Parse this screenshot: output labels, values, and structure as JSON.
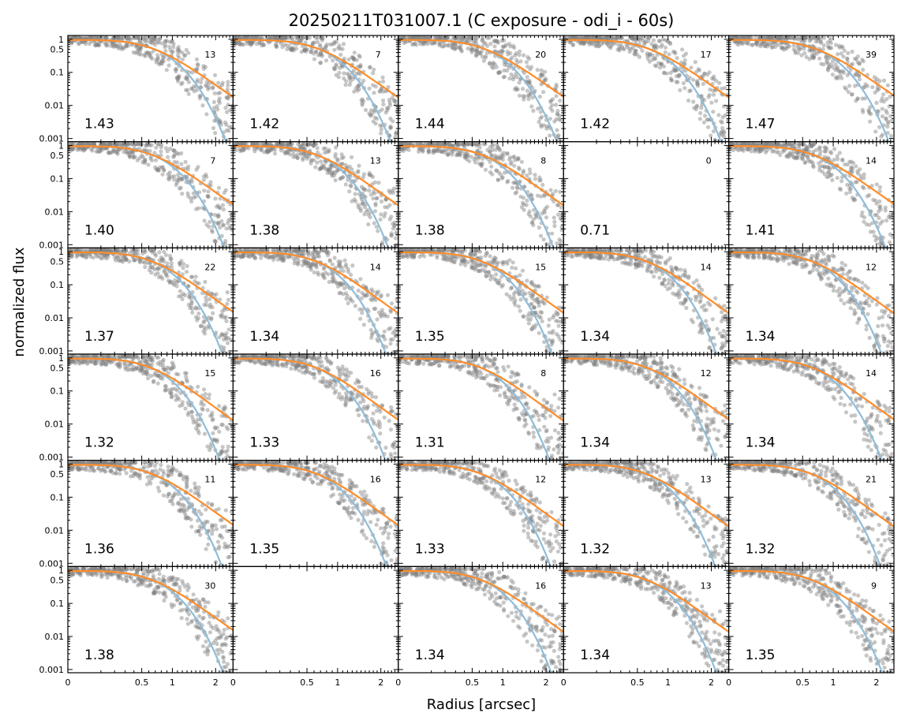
{
  "chart_data": {
    "type": "scatter",
    "title": "20250211T031007.1 (C exposure - odi_i - 60s)",
    "xlabel": "Radius [arcsec]",
    "ylabel": "normalized flux",
    "y_scale": "log",
    "x_scale": "sqrt",
    "ylim": [
      0.0008,
      1.3
    ],
    "xlim": [
      0,
      2.5
    ],
    "y_ticks": [
      {
        "value": 1,
        "label": "1"
      },
      {
        "value": 0.5,
        "label": "0.5"
      },
      {
        "value": 0.1,
        "label": "0.1"
      },
      {
        "value": 0.01,
        "label": "0.01"
      },
      {
        "value": 0.001,
        "label": "0.001"
      }
    ],
    "x_ticks": [
      {
        "value": 0,
        "label": "0"
      },
      {
        "value": 0.5,
        "label": "0.5"
      },
      {
        "value": 1,
        "label": "1"
      },
      {
        "value": 2,
        "label": "2"
      }
    ],
    "grid": "off",
    "colors": {
      "points": "#808080",
      "fit_gaussian": "#8fbcd9",
      "fit_moffat": "#ff8c28"
    },
    "rows": 6,
    "cols": 5,
    "panels": [
      {
        "fwhm": "1.43",
        "count": "13",
        "empty": false
      },
      {
        "fwhm": "1.42",
        "count": "7",
        "empty": false
      },
      {
        "fwhm": "1.44",
        "count": "20",
        "empty": false
      },
      {
        "fwhm": "1.42",
        "count": "17",
        "empty": false
      },
      {
        "fwhm": "1.47",
        "count": "39",
        "empty": false
      },
      {
        "fwhm": "1.40",
        "count": "7",
        "empty": false
      },
      {
        "fwhm": "1.38",
        "count": "13",
        "empty": false
      },
      {
        "fwhm": "1.38",
        "count": "8",
        "empty": false
      },
      {
        "fwhm": "0.71",
        "count": "0",
        "empty": true
      },
      {
        "fwhm": "1.41",
        "count": "14",
        "empty": false
      },
      {
        "fwhm": "1.37",
        "count": "22",
        "empty": false
      },
      {
        "fwhm": "1.34",
        "count": "14",
        "empty": false
      },
      {
        "fwhm": "1.35",
        "count": "15",
        "empty": false
      },
      {
        "fwhm": "1.34",
        "count": "14",
        "empty": false
      },
      {
        "fwhm": "1.34",
        "count": "12",
        "empty": false
      },
      {
        "fwhm": "1.32",
        "count": "15",
        "empty": false
      },
      {
        "fwhm": "1.33",
        "count": "16",
        "empty": false
      },
      {
        "fwhm": "1.31",
        "count": "8",
        "empty": false
      },
      {
        "fwhm": "1.34",
        "count": "12",
        "empty": false
      },
      {
        "fwhm": "1.34",
        "count": "14",
        "empty": false
      },
      {
        "fwhm": "1.36",
        "count": "11",
        "empty": false
      },
      {
        "fwhm": "1.35",
        "count": "16",
        "empty": false
      },
      {
        "fwhm": "1.33",
        "count": "12",
        "empty": false
      },
      {
        "fwhm": "1.32",
        "count": "13",
        "empty": false
      },
      {
        "fwhm": "1.32",
        "count": "21",
        "empty": false
      },
      {
        "fwhm": "1.38",
        "count": "30",
        "empty": false
      },
      {
        "fwhm": "",
        "count": "",
        "empty": true,
        "blank": true
      },
      {
        "fwhm": "1.34",
        "count": "16",
        "empty": false
      },
      {
        "fwhm": "1.34",
        "count": "13",
        "empty": false
      },
      {
        "fwhm": "1.35",
        "count": "9",
        "empty": false
      }
    ]
  }
}
